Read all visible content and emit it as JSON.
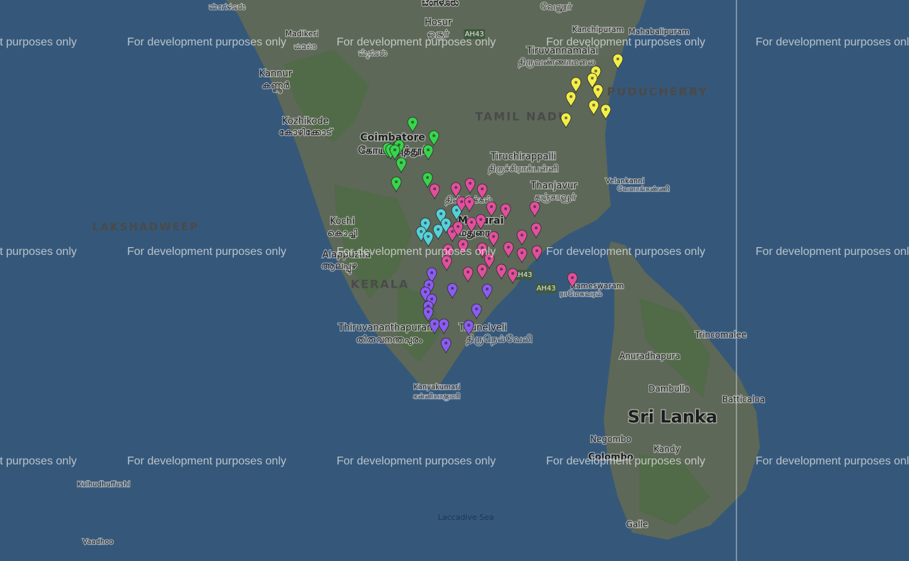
{
  "watermark": "For development purposes only",
  "labels": [
    "ಮಂಗಳೂರು",
    "ಬೆಂಗಳೂರು",
    "வேலூர்",
    "Madikeri",
    "ಮಡಿಕೇರಿ",
    "Hosur",
    "ஓசூர்",
    "AH43",
    "Kanchipuram",
    "Mahabalipuram",
    "ಮೈಸೂರು",
    "Tiruvannamalai",
    "திருவண்ணாமலை",
    "Kannur",
    "കണ്ണൂർ",
    "PUDUCHERRY",
    "TAMIL NADU",
    "Kozhikode",
    "കോഴിക്കോട്",
    "Coimbatore",
    "கோயம்புத்தூர்",
    "Tiruchirappalli",
    "திருச்சிராப்பள்ளி",
    "Thanjavur",
    "தஞ்சாவூர்",
    "Velankanni",
    "வேளாங்கண்ணி",
    "திண்டுக்கல்",
    "LAKSHADWEEP",
    "Kochi",
    "കൊച്ചി",
    "Madurai",
    "மதுரை",
    "Alappuzha",
    "ആലപ്പുഴ",
    "AH43",
    "KERALA",
    "AH43",
    "Rameswaram",
    "ராமேசுவரம்",
    "Thiruvananthapuram",
    "തിരുവനന്തപുരം",
    "Tirunelveli",
    "திருநெல்வேலி",
    "Trincomalee",
    "Anuradhapura",
    "Dambulla",
    "Batticaloa",
    "Sri Lanka",
    "Negombo",
    "Kandy",
    "Colombo",
    "Galle",
    "Kanyakumari",
    "கன்னியாகுமரி",
    "Kulhudhuffushi",
    "Laccadive Sea",
    "Vaadhoo"
  ]
}
